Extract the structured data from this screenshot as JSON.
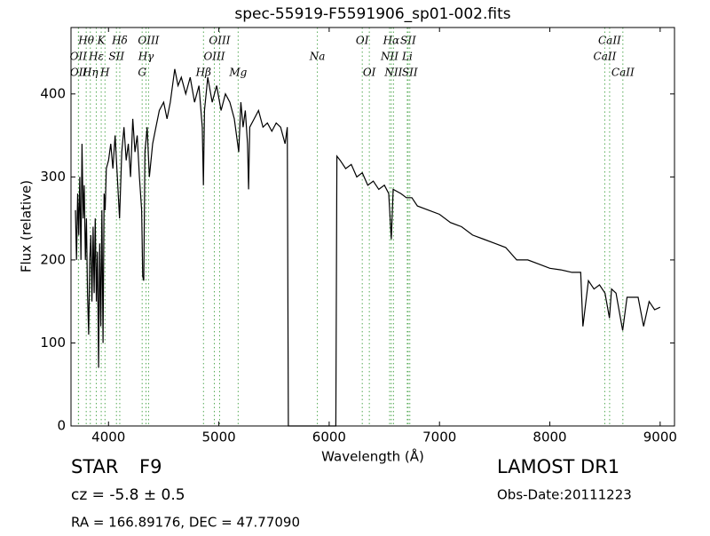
{
  "chart_data": {
    "type": "line",
    "title": "spec-55919-F5591906_sp01-002.fits",
    "xlabel": "Wavelength (Å)",
    "ylabel": "Flux (relative)",
    "xlim": [
      3660,
      9130
    ],
    "ylim": [
      0,
      480
    ],
    "xticks": [
      4000,
      5000,
      6000,
      7000,
      8000,
      9000
    ],
    "yticks": [
      0,
      100,
      200,
      300,
      400
    ],
    "series": [
      {
        "color": "#000000",
        "x": [
          3700,
          3710,
          3720,
          3730,
          3740,
          3750,
          3760,
          3770,
          3780,
          3790,
          3800,
          3810,
          3820,
          3830,
          3840,
          3850,
          3860,
          3870,
          3880,
          3890,
          3900,
          3910,
          3920,
          3930,
          3940,
          3950,
          3960,
          3970,
          3980,
          4000,
          4020,
          4040,
          4060,
          4080,
          4100,
          4120,
          4140,
          4160,
          4180,
          4200,
          4220,
          4240,
          4260,
          4280,
          4300,
          4310,
          4320,
          4330,
          4350,
          4370,
          4400,
          4430,
          4460,
          4500,
          4530,
          4560,
          4600,
          4630,
          4660,
          4700,
          4740,
          4780,
          4820,
          4850,
          4860,
          4870,
          4900,
          4940,
          4980,
          5020,
          5060,
          5100,
          5140,
          5180,
          5200,
          5220,
          5240,
          5260,
          5270,
          5280,
          5320,
          5360,
          5400,
          5440,
          5480,
          5520,
          5560,
          5600,
          5620,
          5630,
          6060,
          6070,
          6100,
          6150,
          6200,
          6250,
          6300,
          6350,
          6400,
          6450,
          6500,
          6540,
          6563,
          6580,
          6650,
          6700,
          6750,
          6800,
          6900,
          7000,
          7100,
          7200,
          7300,
          7400,
          7500,
          7600,
          7700,
          7800,
          7900,
          8000,
          8100,
          8200,
          8280,
          8300,
          8350,
          8400,
          8450,
          8500,
          8540,
          8560,
          8600,
          8640,
          8660,
          8700,
          8800,
          8850,
          8900,
          8950,
          9000
        ],
        "values": [
          260,
          200,
          280,
          230,
          300,
          200,
          340,
          250,
          290,
          200,
          250,
          160,
          110,
          200,
          230,
          150,
          240,
          160,
          250,
          150,
          210,
          70,
          220,
          120,
          260,
          100,
          280,
          260,
          310,
          320,
          340,
          310,
          350,
          300,
          250,
          330,
          360,
          320,
          340,
          300,
          370,
          330,
          350,
          300,
          260,
          180,
          175,
          330,
          360,
          300,
          340,
          360,
          380,
          390,
          370,
          390,
          430,
          410,
          420,
          400,
          420,
          390,
          410,
          360,
          290,
          380,
          420,
          390,
          410,
          380,
          400,
          390,
          370,
          330,
          390,
          360,
          380,
          340,
          285,
          360,
          370,
          380,
          360,
          365,
          355,
          365,
          360,
          340,
          360,
          0,
          0,
          325,
          320,
          310,
          315,
          300,
          305,
          290,
          295,
          285,
          290,
          280,
          225,
          285,
          280,
          275,
          275,
          265,
          260,
          255,
          245,
          240,
          230,
          225,
          220,
          215,
          200,
          200,
          195,
          190,
          188,
          185,
          185,
          120,
          175,
          165,
          170,
          160,
          130,
          165,
          160,
          130,
          115,
          155,
          155,
          120,
          150,
          140,
          143
        ]
      }
    ],
    "line_color": "#55aa55",
    "spectral_lines": [
      [
        {
          "label": "Hθ",
          "wavelength": 3798
        },
        {
          "label": "K",
          "wavelength": 3934
        },
        {
          "label": "Hδ",
          "wavelength": 4102
        },
        {
          "label": "OIII",
          "wavelength": 4363
        },
        {
          "label": "OIII",
          "wavelength": 5007
        },
        {
          "label": "OI",
          "wavelength": 6300
        },
        {
          "label": "Hα",
          "wavelength": 6563
        },
        {
          "label": "SII",
          "wavelength": 6716
        },
        {
          "label": "CaII",
          "wavelength": 8542
        }
      ],
      [
        {
          "label": "OII",
          "wavelength": 3727
        },
        {
          "label": "Hε",
          "wavelength": 3889
        },
        {
          "label": "SII",
          "wavelength": 4072
        },
        {
          "label": "Hγ",
          "wavelength": 4340
        },
        {
          "label": "OIII",
          "wavelength": 4959
        },
        {
          "label": "Na",
          "wavelength": 5893
        },
        {
          "label": "NII",
          "wavelength": 6548
        },
        {
          "label": "Li",
          "wavelength": 6708
        },
        {
          "label": "CaII",
          "wavelength": 8498
        }
      ],
      [
        {
          "label": "OII",
          "wavelength": 3729
        },
        {
          "label": "Hη",
          "wavelength": 3835
        },
        {
          "label": "H",
          "wavelength": 3968
        },
        {
          "label": "G",
          "wavelength": 4305
        },
        {
          "label": "Hβ",
          "wavelength": 4861
        },
        {
          "label": "Mg",
          "wavelength": 5175
        },
        {
          "label": "OI",
          "wavelength": 6364
        },
        {
          "label": "NII",
          "wavelength": 6583
        },
        {
          "label": "SII",
          "wavelength": 6731
        },
        {
          "label": "CaII",
          "wavelength": 8662
        }
      ]
    ]
  },
  "info": {
    "class": "STAR",
    "subclass": "F9",
    "cz": "cz = -5.8 ± 0.5",
    "coords": "RA = 166.89176, DEC = 47.77090",
    "release": "LAMOST DR1",
    "obs_date": "Obs-Date:20111223"
  }
}
